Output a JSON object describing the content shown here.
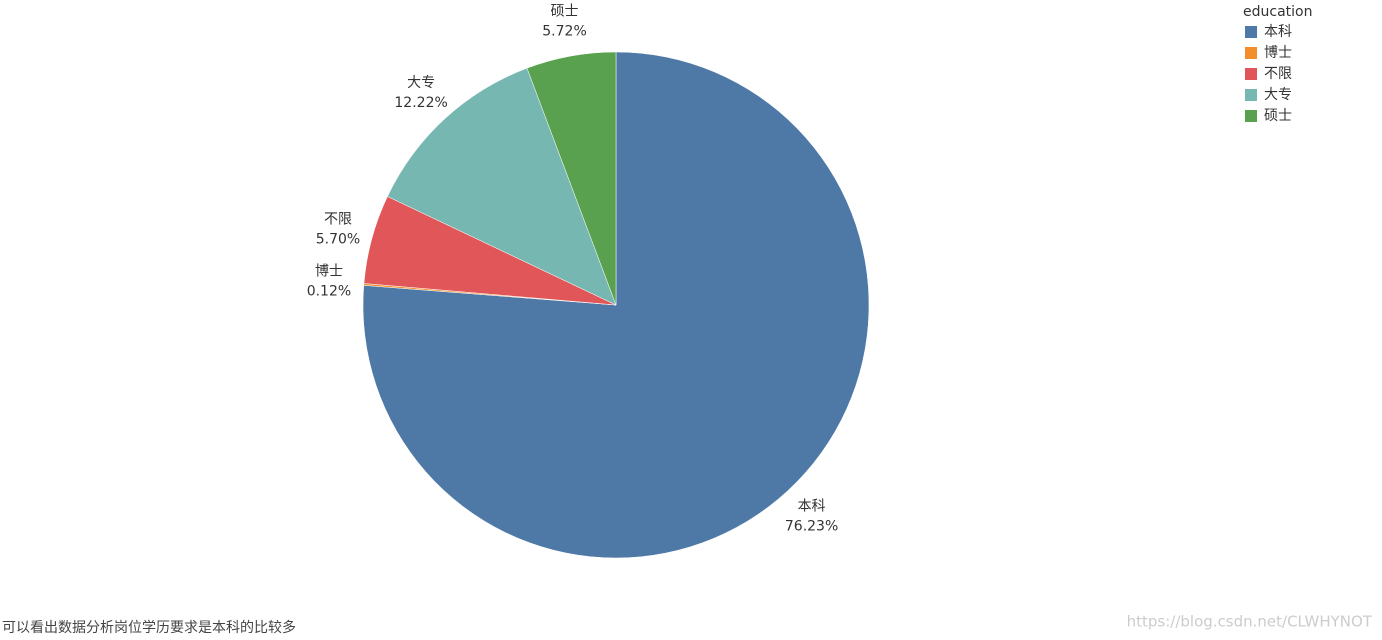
{
  "chart_data": {
    "type": "pie",
    "categories": [
      "本科",
      "博士",
      "不限",
      "大专",
      "硕士"
    ],
    "values": [
      76.23,
      0.12,
      5.7,
      12.22,
      5.72
    ],
    "value_labels": [
      "76.23%",
      "0.12%",
      "5.70%",
      "12.22%",
      "5.72%"
    ],
    "colors": [
      "#4e79a7",
      "#f28e2b",
      "#e15759",
      "#76b7b2",
      "#59a14f"
    ],
    "legend_title": "education",
    "legend_position": "top-right",
    "caption": "可以看出数据分析岗位学历要求是本科的比较多",
    "watermark": "https://blog.csdn.net/CLWHYNOT"
  }
}
